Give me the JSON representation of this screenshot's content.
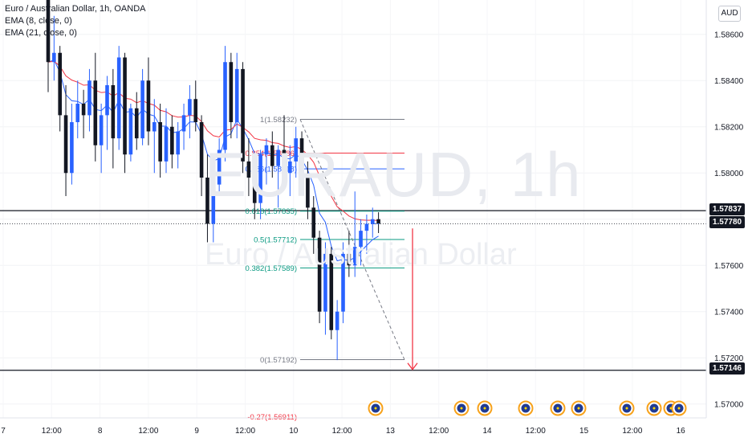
{
  "legend": {
    "title": "Euro / Australian Dollar, 1h, OANDA",
    "ema8": "EMA (8, close, 0)",
    "ema21": "EMA (21, close, 0)"
  },
  "currency_button": "AUD",
  "watermark": {
    "symbol": "EURAUD, 1h",
    "name": "Euro / Australian Dollar"
  },
  "price_labels": {
    "level_top": "1.57837",
    "current": "1.57780",
    "level_bottom": "1.57146"
  },
  "colors": {
    "up": "#2962ff",
    "down": "#131722",
    "ema8": "#2962ff",
    "ema21": "#f23645",
    "fib_red": "#f23645",
    "fib_green": "#089981",
    "fib_blue": "#2962ff",
    "fib_gray": "#787b86",
    "arrow": "#f23645"
  },
  "fib_labels": [
    {
      "label": "1(1.58232)",
      "price": 1.58232,
      "color": "gray"
    },
    {
      "label": "0.854(1.58086)",
      "price": 1.58086,
      "color": "red"
    },
    {
      "label": "0.786(1.58018)",
      "price": 1.58018,
      "color": "blue"
    },
    {
      "label": "0.618(1.57835)",
      "price": 1.57835,
      "color": "green"
    },
    {
      "label": "0.5(1.57712)",
      "price": 1.57712,
      "color": "green"
    },
    {
      "label": "0.382(1.57589)",
      "price": 1.57589,
      "color": "green"
    },
    {
      "label": "0(1.57192)",
      "price": 1.57192,
      "color": "gray"
    },
    {
      "label": "-0.27(1.56911)",
      "price": 1.56911,
      "color": "red"
    }
  ],
  "events": {
    "icon": "calendar-event-icon",
    "count": 10
  },
  "chart_data": {
    "type": "candlestick",
    "symbol": "EURAUD",
    "interval": "1h",
    "source": "OANDA",
    "ylim": [
      1.5694,
      1.587
    ],
    "y_ticks": [
      1.57,
      1.572,
      1.574,
      1.576,
      1.578,
      1.58,
      1.582,
      1.584,
      1.586
    ],
    "y_tick_labels": [
      "1.57000",
      "1.57200",
      "1.57400",
      "1.57600",
      "1.57800",
      "1.58000",
      "1.58200",
      "1.58400",
      "1.58600"
    ],
    "x_tick_labels": [
      "7",
      "12:00",
      "8",
      "12:00",
      "9",
      "12:00",
      "10",
      "12:00",
      "13",
      "12:00",
      "14",
      "12:00",
      "15",
      "12:00",
      "16"
    ],
    "horizontal_levels": [
      1.57837,
      1.57146
    ],
    "current_price": 1.5778,
    "candles": [
      {
        "o": 1.5875,
        "h": 1.588,
        "l": 1.5835,
        "c": 1.5848
      },
      {
        "o": 1.5848,
        "h": 1.5868,
        "l": 1.584,
        "c": 1.5852
      },
      {
        "o": 1.5852,
        "h": 1.5855,
        "l": 1.5818,
        "c": 1.5825
      },
      {
        "o": 1.5825,
        "h": 1.5838,
        "l": 1.579,
        "c": 1.58
      },
      {
        "o": 1.58,
        "h": 1.583,
        "l": 1.5795,
        "c": 1.5822
      },
      {
        "o": 1.5822,
        "h": 1.584,
        "l": 1.5815,
        "c": 1.583
      },
      {
        "o": 1.583,
        "h": 1.5836,
        "l": 1.5815,
        "c": 1.5825
      },
      {
        "o": 1.5825,
        "h": 1.5845,
        "l": 1.5818,
        "c": 1.584
      },
      {
        "o": 1.584,
        "h": 1.5852,
        "l": 1.5805,
        "c": 1.5812
      },
      {
        "o": 1.5812,
        "h": 1.583,
        "l": 1.58,
        "c": 1.5825
      },
      {
        "o": 1.5825,
        "h": 1.5842,
        "l": 1.581,
        "c": 1.5838
      },
      {
        "o": 1.5838,
        "h": 1.5845,
        "l": 1.5802,
        "c": 1.5815
      },
      {
        "o": 1.5815,
        "h": 1.5855,
        "l": 1.581,
        "c": 1.585
      },
      {
        "o": 1.585,
        "h": 1.5852,
        "l": 1.58,
        "c": 1.5808
      },
      {
        "o": 1.5808,
        "h": 1.583,
        "l": 1.5805,
        "c": 1.5828
      },
      {
        "o": 1.5828,
        "h": 1.5835,
        "l": 1.581,
        "c": 1.5815
      },
      {
        "o": 1.5815,
        "h": 1.5845,
        "l": 1.5812,
        "c": 1.584
      },
      {
        "o": 1.584,
        "h": 1.585,
        "l": 1.5812,
        "c": 1.5818
      },
      {
        "o": 1.5818,
        "h": 1.5832,
        "l": 1.58,
        "c": 1.5822
      },
      {
        "o": 1.5822,
        "h": 1.583,
        "l": 1.5798,
        "c": 1.5805
      },
      {
        "o": 1.5805,
        "h": 1.5828,
        "l": 1.58,
        "c": 1.582
      },
      {
        "o": 1.582,
        "h": 1.5825,
        "l": 1.5802,
        "c": 1.5808
      },
      {
        "o": 1.5808,
        "h": 1.5822,
        "l": 1.5802,
        "c": 1.5818
      },
      {
        "o": 1.5818,
        "h": 1.583,
        "l": 1.581,
        "c": 1.5825
      },
      {
        "o": 1.5825,
        "h": 1.5838,
        "l": 1.5815,
        "c": 1.5832
      },
      {
        "o": 1.5832,
        "h": 1.584,
        "l": 1.5818,
        "c": 1.5822
      },
      {
        "o": 1.5822,
        "h": 1.5825,
        "l": 1.579,
        "c": 1.5798
      },
      {
        "o": 1.5798,
        "h": 1.5808,
        "l": 1.577,
        "c": 1.5778
      },
      {
        "o": 1.5778,
        "h": 1.58,
        "l": 1.577,
        "c": 1.5795
      },
      {
        "o": 1.5795,
        "h": 1.5815,
        "l": 1.579,
        "c": 1.581
      },
      {
        "o": 1.581,
        "h": 1.5855,
        "l": 1.5805,
        "c": 1.5848
      },
      {
        "o": 1.5848,
        "h": 1.5852,
        "l": 1.5815,
        "c": 1.5822
      },
      {
        "o": 1.5822,
        "h": 1.5852,
        "l": 1.5815,
        "c": 1.5845
      },
      {
        "o": 1.5845,
        "h": 1.5848,
        "l": 1.58,
        "c": 1.5805
      },
      {
        "o": 1.5805,
        "h": 1.5815,
        "l": 1.579,
        "c": 1.5798
      },
      {
        "o": 1.5798,
        "h": 1.5805,
        "l": 1.578,
        "c": 1.5787
      },
      {
        "o": 1.5787,
        "h": 1.581,
        "l": 1.578,
        "c": 1.5808
      },
      {
        "o": 1.5808,
        "h": 1.5815,
        "l": 1.5795,
        "c": 1.5812
      },
      {
        "o": 1.5812,
        "h": 1.5818,
        "l": 1.5798,
        "c": 1.5803
      },
      {
        "o": 1.5803,
        "h": 1.5812,
        "l": 1.5785,
        "c": 1.581
      },
      {
        "o": 1.581,
        "h": 1.5825,
        "l": 1.5795,
        "c": 1.58
      },
      {
        "o": 1.58,
        "h": 1.5812,
        "l": 1.579,
        "c": 1.5805
      },
      {
        "o": 1.5805,
        "h": 1.582,
        "l": 1.5798,
        "c": 1.5815
      },
      {
        "o": 1.5815,
        "h": 1.5818,
        "l": 1.5795,
        "c": 1.5798
      },
      {
        "o": 1.5798,
        "h": 1.5805,
        "l": 1.578,
        "c": 1.5785
      },
      {
        "o": 1.5785,
        "h": 1.579,
        "l": 1.5765,
        "c": 1.5772
      },
      {
        "o": 1.5772,
        "h": 1.5775,
        "l": 1.5735,
        "c": 1.574
      },
      {
        "o": 1.574,
        "h": 1.577,
        "l": 1.573,
        "c": 1.5765
      },
      {
        "o": 1.5765,
        "h": 1.5768,
        "l": 1.5728,
        "c": 1.5732
      },
      {
        "o": 1.5732,
        "h": 1.5745,
        "l": 1.5719,
        "c": 1.574
      },
      {
        "o": 1.574,
        "h": 1.577,
        "l": 1.5735,
        "c": 1.5765
      },
      {
        "o": 1.5765,
        "h": 1.5775,
        "l": 1.5755,
        "c": 1.576
      },
      {
        "o": 1.576,
        "h": 1.5792,
        "l": 1.5755,
        "c": 1.5768
      },
      {
        "o": 1.5768,
        "h": 1.578,
        "l": 1.576,
        "c": 1.5775
      },
      {
        "o": 1.5775,
        "h": 1.5782,
        "l": 1.5765,
        "c": 1.5778
      },
      {
        "o": 1.5778,
        "h": 1.5785,
        "l": 1.5772,
        "c": 1.578
      },
      {
        "o": 1.578,
        "h": 1.5783,
        "l": 1.5774,
        "c": 1.5778
      }
    ]
  }
}
